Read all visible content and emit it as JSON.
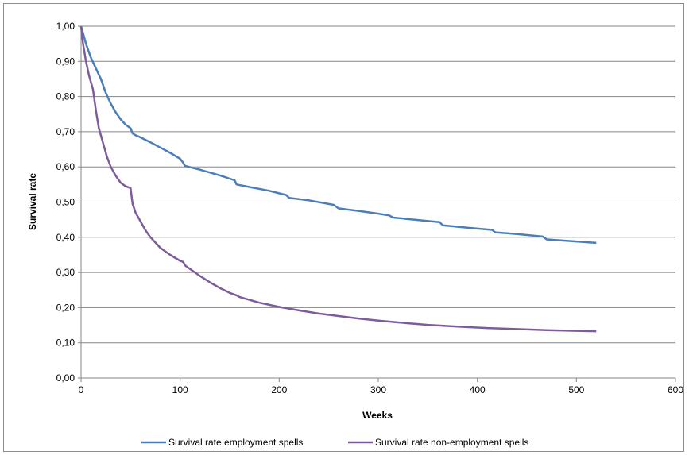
{
  "chart_data": {
    "type": "line",
    "title": "",
    "xlabel": "Weeks",
    "ylabel": "Survival rate",
    "xlim": [
      0,
      600
    ],
    "ylim": [
      0,
      1
    ],
    "x_ticks": [
      0,
      100,
      200,
      300,
      400,
      500,
      600
    ],
    "x_tick_labels": [
      "0",
      "100",
      "200",
      "300",
      "400",
      "500",
      "600"
    ],
    "y_ticks": [
      0,
      0.1,
      0.2,
      0.3,
      0.4,
      0.5,
      0.6,
      0.7,
      0.8,
      0.9,
      1.0
    ],
    "y_tick_labels": [
      "0,00",
      "0,10",
      "0,20",
      "0,30",
      "0,40",
      "0,50",
      "0,60",
      "0,70",
      "0,80",
      "0,90",
      "1,00"
    ],
    "grid": "horizontal",
    "legend_position": "bottom",
    "series": [
      {
        "name": "Survival rate employment spells",
        "color": "#4a7ebb",
        "x": [
          0,
          2,
          5,
          10,
          15,
          20,
          25,
          30,
          35,
          40,
          45,
          50,
          52,
          55,
          60,
          70,
          80,
          90,
          100,
          103,
          105,
          120,
          140,
          155,
          157,
          170,
          190,
          207,
          210,
          230,
          255,
          260,
          280,
          300,
          311,
          315,
          340,
          362,
          365,
          390,
          415,
          418,
          440,
          466,
          470,
          490,
          510,
          520
        ],
        "y": [
          1.0,
          0.98,
          0.95,
          0.91,
          0.88,
          0.85,
          0.81,
          0.78,
          0.755,
          0.735,
          0.72,
          0.71,
          0.695,
          0.69,
          0.684,
          0.67,
          0.655,
          0.64,
          0.623,
          0.612,
          0.603,
          0.592,
          0.576,
          0.562,
          0.55,
          0.543,
          0.532,
          0.52,
          0.512,
          0.505,
          0.492,
          0.482,
          0.475,
          0.467,
          0.462,
          0.456,
          0.449,
          0.443,
          0.434,
          0.427,
          0.421,
          0.414,
          0.409,
          0.402,
          0.394,
          0.39,
          0.386,
          0.384
        ]
      },
      {
        "name": "Survival rate non-employment spells",
        "color": "#7d5c9e",
        "x": [
          0,
          2,
          5,
          8,
          12,
          15,
          18,
          22,
          26,
          30,
          35,
          40,
          45,
          50,
          52,
          55,
          60,
          65,
          70,
          75,
          80,
          90,
          100,
          103,
          105,
          110,
          120,
          130,
          140,
          150,
          157,
          160,
          180,
          200,
          220,
          240,
          260,
          280,
          300,
          320,
          350,
          380,
          410,
          440,
          470,
          500,
          520
        ],
        "y": [
          1.0,
          0.95,
          0.9,
          0.86,
          0.82,
          0.76,
          0.71,
          0.67,
          0.63,
          0.6,
          0.575,
          0.555,
          0.545,
          0.54,
          0.495,
          0.47,
          0.445,
          0.42,
          0.4,
          0.385,
          0.37,
          0.35,
          0.333,
          0.33,
          0.32,
          0.31,
          0.29,
          0.272,
          0.256,
          0.242,
          0.235,
          0.23,
          0.214,
          0.202,
          0.192,
          0.183,
          0.176,
          0.169,
          0.163,
          0.158,
          0.151,
          0.146,
          0.142,
          0.139,
          0.136,
          0.134,
          0.133
        ]
      }
    ]
  }
}
